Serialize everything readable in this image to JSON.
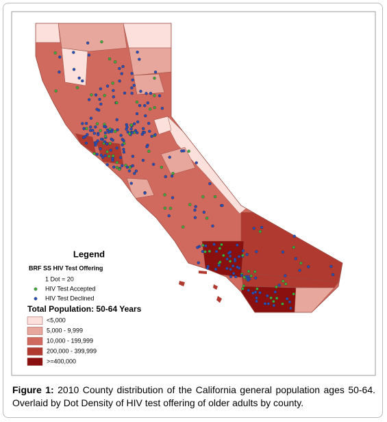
{
  "legend": {
    "title": "Legend",
    "subtitle": "BRF SS HIV Test Offering",
    "dot_note": "1 Dot = 20",
    "dots": [
      {
        "label": "HIV Test Accepted",
        "color": "#3fae3a"
      },
      {
        "label": "HIV Test Declined",
        "color": "#2b4fb8"
      }
    ],
    "population_title": "Total Population: 50-64 Years",
    "classes": [
      {
        "label": "<5,000",
        "color": "#fbe0dc"
      },
      {
        "label": "5,000 - 9,999",
        "color": "#e8a79c"
      },
      {
        "label": "10,000 - 199,999",
        "color": "#d0695e"
      },
      {
        "label": "200,000 - 399,999",
        "color": "#b03a30"
      },
      {
        "label": ">=400,000",
        "color": "#8a1010"
      }
    ]
  },
  "caption": {
    "label": "Figure 1:",
    "text": "2010 County distribution of the California general population ages 50-64. Overlaid by Dot Density of HIV test offering of older adults by county."
  }
}
